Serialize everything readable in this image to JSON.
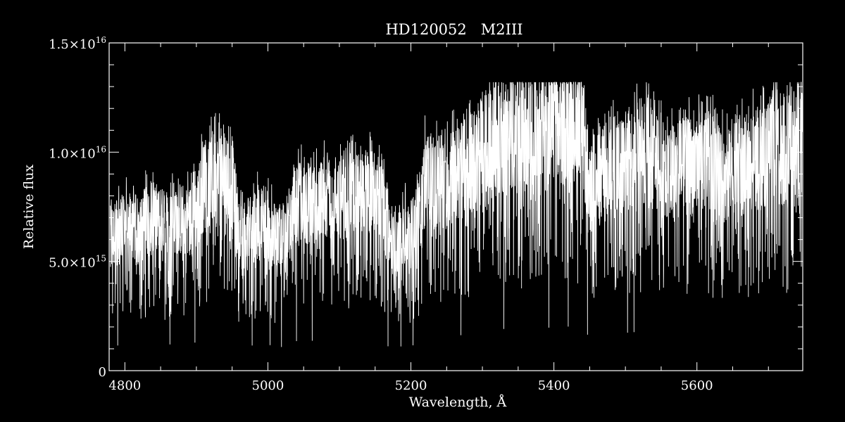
{
  "colors": {
    "background": "#000000",
    "foreground": "#ffffff"
  },
  "chart_data": {
    "type": "line",
    "title": "HD120052   M2III",
    "xlabel": "Wavelength, Å",
    "ylabel": "Relative flux",
    "xlim": [
      4778,
      5748
    ],
    "ylim": [
      0,
      1.5e+16
    ],
    "grid": false,
    "legend": "none",
    "x_ticks": [
      {
        "value": 4800,
        "label": "4800"
      },
      {
        "value": 5000,
        "label": "5000"
      },
      {
        "value": 5200,
        "label": "5200"
      },
      {
        "value": 5400,
        "label": "5400"
      },
      {
        "value": 5600,
        "label": "5600"
      }
    ],
    "x_minor_step": 50,
    "y_ticks": [
      {
        "value": 0,
        "mantissa": "0",
        "exponent": ""
      },
      {
        "value": 5000000000000000.0,
        "mantissa": "5.0×10",
        "exponent": "15"
      },
      {
        "value": 1e+16,
        "mantissa": "1.0×10",
        "exponent": "16"
      },
      {
        "value": 1.5e+16,
        "mantissa": "1.5×10",
        "exponent": "16"
      }
    ],
    "y_minor_step": 1000000000000000.0,
    "series": [
      {
        "x": [
          4780,
          4790,
          4800,
          4810,
          4820,
          4830,
          4840,
          4850,
          4860,
          4870,
          4880,
          4890,
          4900,
          4910,
          4920,
          4930,
          4940,
          4950,
          4960,
          4970,
          4980,
          4990,
          5000,
          5010,
          5020,
          5030,
          5040,
          5050,
          5060,
          5070,
          5080,
          5090,
          5100,
          5110,
          5120,
          5130,
          5140,
          5150,
          5160,
          5170,
          5180,
          5190,
          5200,
          5210,
          5220,
          5230,
          5240,
          5250,
          5260,
          5270,
          5280,
          5290,
          5300,
          5310,
          5320,
          5330,
          5340,
          5350,
          5360,
          5370,
          5380,
          5390,
          5400,
          5410,
          5420,
          5430,
          5440,
          5450,
          5460,
          5470,
          5480,
          5490,
          5500,
          5510,
          5520,
          5530,
          5540,
          5550,
          5560,
          5570,
          5580,
          5590,
          5600,
          5610,
          5620,
          5630,
          5640,
          5650,
          5660,
          5670,
          5680,
          5690,
          5700,
          5710,
          5720,
          5730,
          5740,
          5748
        ],
        "y": [
          6000000000000000.0,
          6400000000000000.0,
          6600000000000000.0,
          6800000000000000.0,
          6200000000000000.0,
          7000000000000000.0,
          6900000000000000.0,
          6800000000000000.0,
          6500000000000000.0,
          7000000000000000.0,
          6900000000000000.0,
          6800000000000000.0,
          7200000000000000.0,
          8500000000000000.0,
          8600000000000000.0,
          8800000000000000.0,
          8500000000000000.0,
          8700000000000000.0,
          6200000000000000.0,
          6000000000000000.0,
          6500000000000000.0,
          7000000000000000.0,
          6600000000000000.0,
          6200000000000000.0,
          6000000000000000.0,
          6800000000000000.0,
          7500000000000000.0,
          7800000000000000.0,
          7600000000000000.0,
          7600000000000000.0,
          7900000000000000.0,
          8000000000000000.0,
          8000000000000000.0,
          7900000000000000.0,
          8100000000000000.0,
          8000000000000000.0,
          8300000000000000.0,
          8000000000000000.0,
          7800000000000000.0,
          5800000000000000.0,
          5600000000000000.0,
          6500000000000000.0,
          6200000000000000.0,
          7000000000000000.0,
          8800000000000000.0,
          8500000000000000.0,
          8800000000000000.0,
          8600000000000000.0,
          8900000000000000.0,
          9000000000000000.0,
          9500000000000000.0,
          9800000000000000.0,
          1.02e+16,
          1.03e+16,
          1.04e+16,
          1.06e+16,
          1.06e+16,
          1.08e+16,
          1.06e+16,
          1.07e+16,
          1.08e+16,
          1.09e+16,
          1.1e+16,
          1.08e+16,
          1.12e+16,
          1.13e+16,
          1.11e+16,
          8300000000000000.0,
          8600000000000000.0,
          9000000000000000.0,
          9400000000000000.0,
          9200000000000000.0,
          9600000000000000.0,
          9800000000000000.0,
          9700000000000000.0,
          1e+16,
          9600000000000000.0,
          9200000000000000.0,
          9000000000000000.0,
          9300000000000000.0,
          9300000000000000.0,
          9400000000000000.0,
          9400000000000000.0,
          9500000000000000.0,
          9500000000000000.0,
          9000000000000000.0,
          8800000000000000.0,
          9000000000000000.0,
          9300000000000000.0,
          9400000000000000.0,
          9600000000000000.0,
          9800000000000000.0,
          1e+16,
          1.01e+16,
          1e+16,
          1.02e+16,
          1.05e+16,
          1.08e+16
        ],
        "note_absorption_spike_minima": [
          4790,
          4863,
          4898,
          4978,
          5003,
          5019,
          5040,
          5062,
          5168,
          5186,
          5203,
          5270,
          5330,
          5393,
          5420,
          5447,
          5503,
          5512
        ]
      }
    ]
  }
}
